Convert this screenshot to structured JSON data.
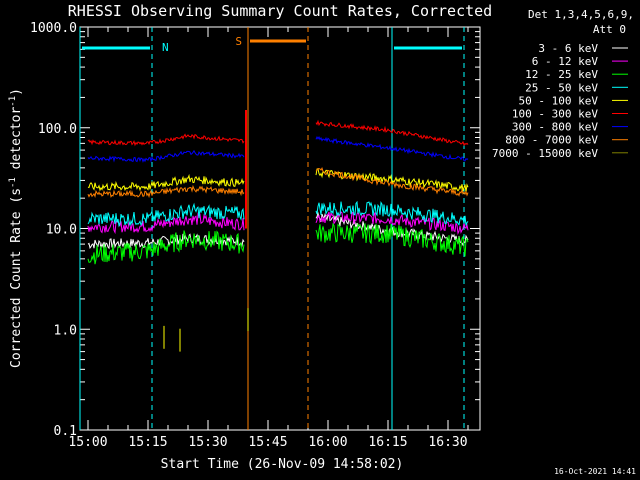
{
  "chart_data": {
    "type": "line",
    "title": "RHESSI Observing Summary Count Rates, Corrected",
    "xlabel": "Start Time (26-Nov-09 14:58:02)",
    "ylabel_parts": [
      "Corrected Count Rate (s",
      "-1",
      " detector",
      "-1",
      ")"
    ],
    "yscale": "log",
    "ylim": [
      0.1,
      1000
    ],
    "xlim": [
      "14:58",
      "16:38"
    ],
    "yticks": [
      "1000.0",
      "100.0",
      "10.0",
      "1.0",
      "0.1"
    ],
    "xticks": [
      "15:00",
      "15:15",
      "15:30",
      "15:45",
      "16:00",
      "16:15",
      "16:30"
    ],
    "legend_header": [
      "Det 1,3,4,5,6,9,",
      "Att 0"
    ],
    "legend_position": "right",
    "footer_stamp": "16-Oct-2021 14:41",
    "night_label": "N",
    "saa_label": "S",
    "night_intervals": [
      [
        "14:58",
        "15:16"
      ],
      [
        "16:16",
        "16:34"
      ]
    ],
    "saa_interval": [
      "15:40",
      "15:55"
    ],
    "data_gaps": [
      [
        "15:40",
        "15:56"
      ]
    ],
    "series": [
      {
        "name": "3 - 6 keV",
        "color": "#ffffff",
        "values": {
          "15:00": 7.0,
          "15:15": 7.2,
          "15:25": 8.0,
          "15:39": 7.5,
          "15:57": 13.0,
          "16:15": 9.5,
          "16:35": 7.5
        }
      },
      {
        "name": "6 - 12 keV",
        "color": "#ff00ff",
        "values": {
          "15:00": 10.5,
          "15:15": 10.5,
          "15:25": 12.5,
          "15:39": 11.0,
          "15:57": 13.0,
          "16:15": 12.5,
          "16:35": 10.0
        }
      },
      {
        "name": "12 - 25 keV",
        "color": "#00ff00",
        "values": {
          "15:00": 5.5,
          "15:15": 6.0,
          "15:25": 8.0,
          "15:39": 7.0,
          "15:57": 9.0,
          "16:15": 9.0,
          "16:35": 6.5
        }
      },
      {
        "name": "25 - 50 keV",
        "color": "#00ffff",
        "values": {
          "15:00": 12.5,
          "15:15": 12.5,
          "15:25": 15.0,
          "15:39": 14.0,
          "15:57": 16.0,
          "16:15": 15.5,
          "16:35": 12.0
        }
      },
      {
        "name": "50 - 100 keV",
        "color": "#ffff00",
        "values": {
          "15:00": 26.0,
          "15:15": 26.0,
          "15:25": 31.0,
          "15:39": 28.0,
          "15:57": 36.0,
          "16:15": 31.0,
          "16:35": 25.0
        }
      },
      {
        "name": "100 - 300 keV",
        "color": "#ff0000",
        "values": {
          "15:00": 72.0,
          "15:15": 70.0,
          "15:25": 83.0,
          "15:39": 74.0,
          "15:57": 112.0,
          "16:15": 95.0,
          "16:35": 68.0
        }
      },
      {
        "name": "300 - 800 keV",
        "color": "#0000ff",
        "values": {
          "15:00": 50.0,
          "15:15": 48.0,
          "15:25": 57.0,
          "15:39": 52.0,
          "15:57": 78.0,
          "16:15": 63.0,
          "16:35": 48.0
        }
      },
      {
        "name": "800 - 7000 keV",
        "color": "#ff8000",
        "values": {
          "15:00": 22.0,
          "15:15": 22.0,
          "15:25": 25.0,
          "15:39": 23.0,
          "15:57": 38.0,
          "16:15": 28.0,
          "16:35": 22.0
        }
      },
      {
        "name": "7000 - 15000 keV",
        "color": "#808000",
        "values": {
          "15:19": 0.8,
          "15:23": 0.75,
          "15:40": 1.2
        }
      }
    ]
  },
  "colors": {
    "background": "#000000",
    "axes": "#ffffff",
    "night": "#00ffff",
    "saa": "#ff8000"
  }
}
